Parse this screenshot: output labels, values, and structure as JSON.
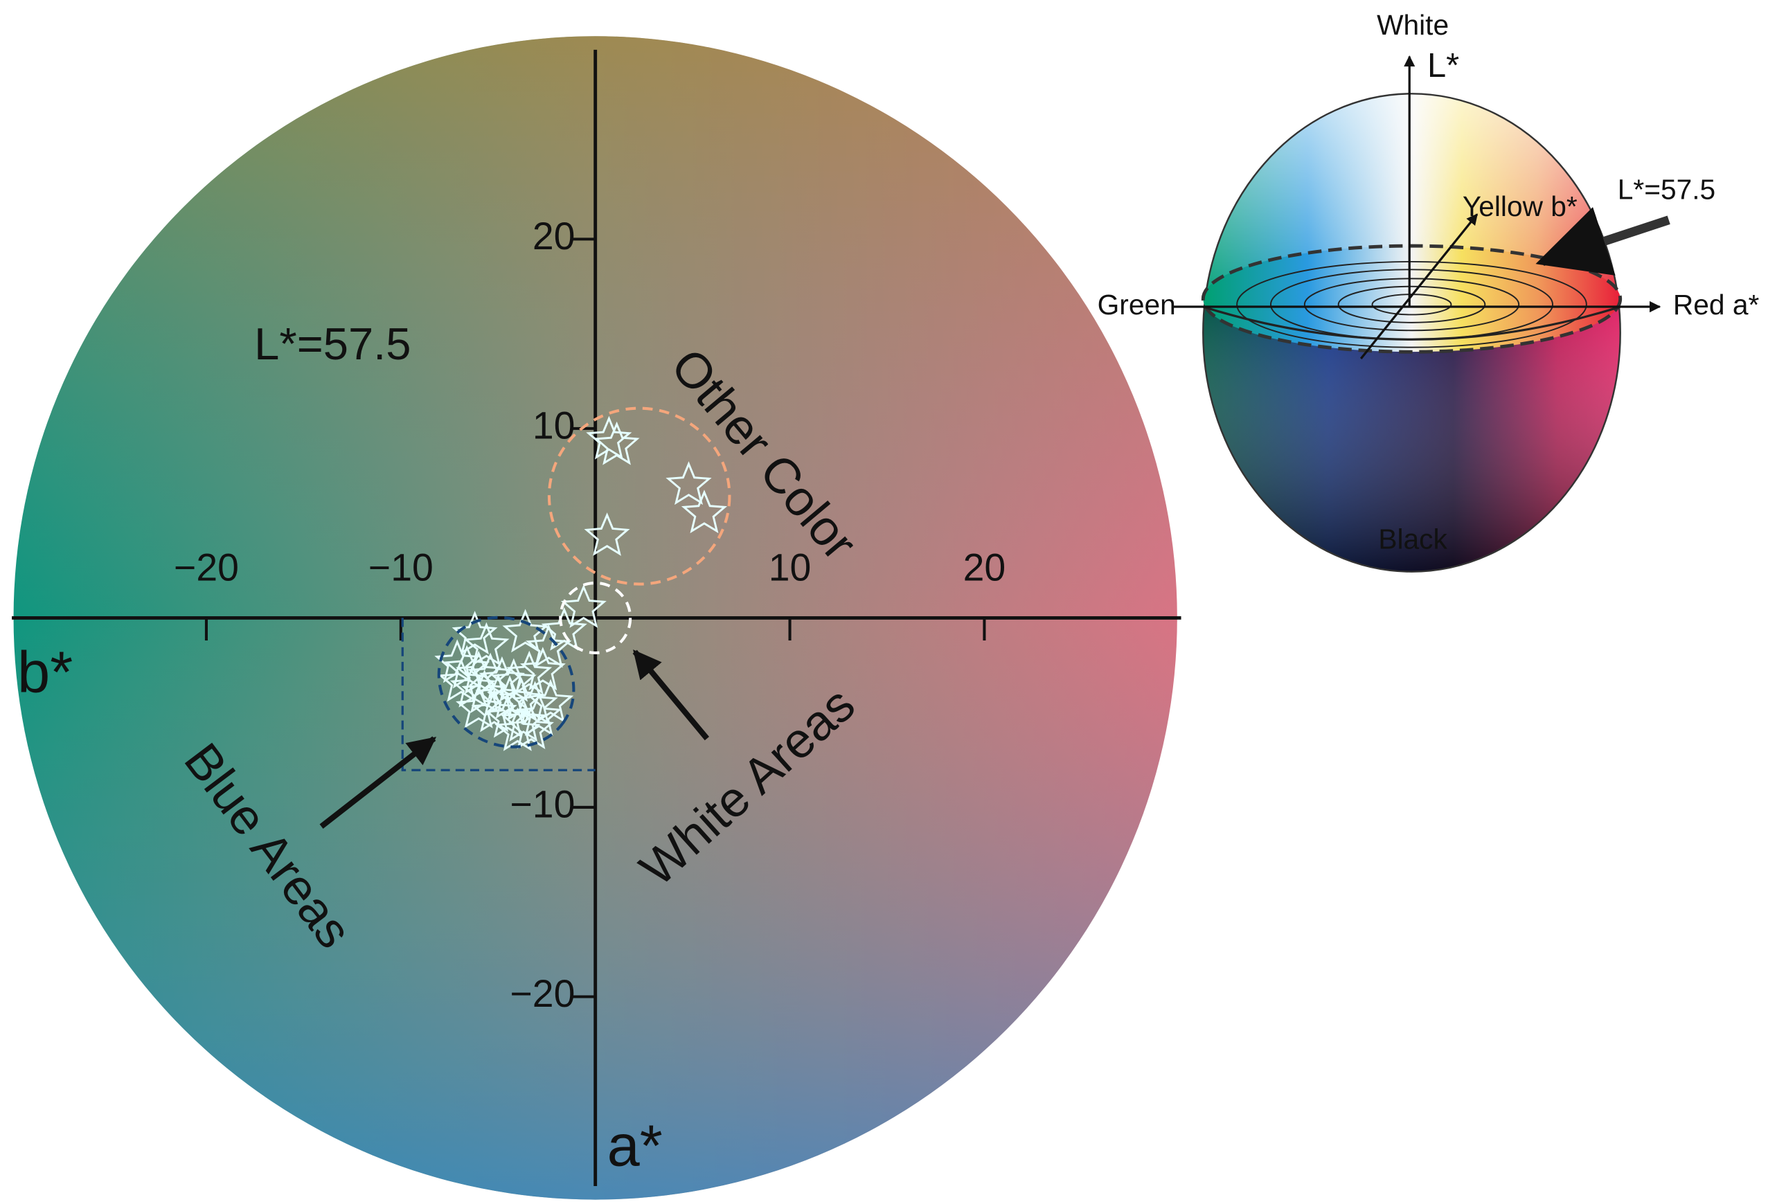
{
  "chart_data": {
    "type": "scatter",
    "annotation": "L*=57.5",
    "x_label": "b*",
    "y_label": "a*",
    "region_labels": [
      "Other Color",
      "White Areas",
      "Blue Areas"
    ],
    "xlim": [
      -30,
      30
    ],
    "ylim": [
      -30,
      30
    ],
    "xticks": [
      {
        "value": -20,
        "label": "−20"
      },
      {
        "value": -10,
        "label": "−10"
      },
      10,
      20
    ],
    "yticks": [
      20,
      10,
      {
        "value": -10,
        "label": "−10"
      },
      {
        "value": -20,
        "label": "−20"
      }
    ],
    "series": [
      {
        "color": "#e6ffff",
        "x": [
          0.7,
          1.1,
          4.8,
          5.6,
          0.6,
          -0.6,
          -1.6,
          -6.2,
          -5.6,
          -3.6,
          -2.4,
          -7.1,
          -6.6,
          -6.0,
          -5.4,
          -4.8,
          -4.2,
          -3.4,
          -2.7,
          -6.9,
          -6.3,
          -5.7,
          -5.0,
          -4.4,
          -3.8,
          -3.1,
          -2.3,
          -6.0,
          -5.2,
          -4.5,
          -3.7,
          -2.9,
          -4.0,
          -3.3
        ],
        "y": [
          9.4,
          9.1,
          7.0,
          5.5,
          4.3,
          0.5,
          -0.7,
          -0.9,
          -1.5,
          -0.8,
          -1.6,
          -2.4,
          -2.7,
          -3.0,
          -3.1,
          -3.3,
          -3.4,
          -3.0,
          -2.8,
          -3.4,
          -3.7,
          -4.0,
          -4.2,
          -4.3,
          -4.4,
          -4.6,
          -4.5,
          -4.8,
          -5.0,
          -5.3,
          -5.5,
          -5.2,
          -6.0,
          -5.9
        ]
      }
    ]
  },
  "inset": {
    "top": "White",
    "axis_l": "L*",
    "axis_b": "Yellow b*",
    "slice": "L*=57.5",
    "left": "Green",
    "axis_a": "Red a*",
    "bottom": "Black"
  }
}
